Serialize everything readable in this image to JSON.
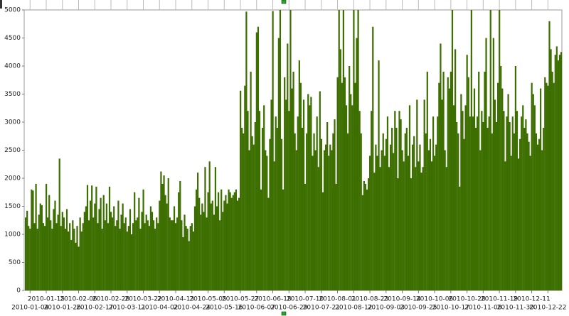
{
  "chart_data": {
    "type": "bar",
    "color": "#3c6e00",
    "ylim": [
      0,
      5000
    ],
    "yticks": [
      0,
      500,
      1000,
      1500,
      2000,
      2500,
      3000,
      3500,
      4000,
      4500,
      5000
    ],
    "categories": [
      null,
      null,
      null,
      "2010-01-04",
      null,
      null,
      null,
      null,
      null,
      null,
      null,
      null,
      null,
      null,
      "2010-01-15",
      null,
      null,
      null,
      null,
      null,
      null,
      null,
      null,
      null,
      null,
      "2010-01-26",
      null,
      null,
      null,
      null,
      null,
      null,
      null,
      null,
      null,
      null,
      "2010-02-06",
      null,
      null,
      null,
      null,
      null,
      null,
      null,
      null,
      null,
      null,
      "2010-02-17",
      null,
      null,
      null,
      null,
      null,
      null,
      null,
      null,
      null,
      null,
      "2010-02-28",
      null,
      null,
      null,
      null,
      null,
      null,
      null,
      null,
      null,
      null,
      "2010-03-11",
      null,
      null,
      null,
      null,
      null,
      null,
      null,
      null,
      null,
      null,
      "2010-03-22",
      null,
      null,
      null,
      null,
      null,
      null,
      null,
      null,
      null,
      null,
      "2010-04-02",
      null,
      null,
      null,
      null,
      null,
      null,
      null,
      null,
      null,
      null,
      "2010-04-13",
      null,
      null,
      null,
      null,
      null,
      null,
      null,
      null,
      null,
      null,
      "2010-04-24",
      null,
      null,
      null,
      null,
      null,
      null,
      null,
      null,
      null,
      null,
      "2010-05-05",
      null,
      null,
      null,
      null,
      null,
      null,
      null,
      null,
      null,
      null,
      "2010-05-16",
      null,
      null,
      null,
      null,
      null,
      null,
      null,
      null,
      null,
      null,
      "2010-05-27",
      null,
      null,
      null,
      null,
      null,
      null,
      null,
      null,
      null,
      null,
      "2010-06-07",
      null,
      null,
      null,
      null,
      null,
      null,
      null,
      null,
      null,
      null,
      "2010-06-18",
      null,
      null,
      null,
      null,
      null,
      null,
      null,
      null,
      null,
      null,
      "2010-06-29",
      null,
      null,
      null,
      null,
      null,
      null,
      null,
      null,
      null,
      null,
      "2010-07-10",
      null,
      null,
      null,
      null,
      null,
      null,
      null,
      null,
      null,
      null,
      "2010-07-21",
      null,
      null,
      null,
      null,
      null,
      null,
      null,
      null,
      null,
      null,
      "2010-08-01",
      null,
      null,
      null,
      null,
      null,
      null,
      null,
      null,
      null,
      null,
      "2010-08-12",
      null,
      null,
      null,
      null,
      null,
      null,
      null,
      null,
      null,
      null,
      "2010-08-23",
      null,
      null,
      null,
      null,
      null,
      null,
      null,
      null,
      null,
      null,
      "2010-09-03",
      null,
      null,
      null,
      null,
      null,
      null,
      null,
      null,
      null,
      null,
      "2010-09-14",
      null,
      null,
      null,
      null,
      null,
      null,
      null,
      null,
      null,
      null,
      "2010-09-25",
      null,
      null,
      null,
      null,
      null,
      null,
      null,
      null,
      null,
      null,
      "2010-10-06",
      null,
      null,
      null,
      null,
      null,
      null,
      null,
      null,
      null,
      null,
      "2010-10-17",
      null,
      null,
      null,
      null,
      null,
      null,
      null,
      null,
      null,
      null,
      "2010-10-28",
      null,
      null,
      null,
      null,
      null,
      null,
      null,
      null,
      null,
      null,
      "2010-11-08",
      null,
      null,
      null,
      null,
      null,
      null,
      null,
      null,
      null,
      null,
      "2010-11-19",
      null,
      null,
      null,
      null,
      null,
      null,
      null,
      null,
      null,
      null,
      "2010-11-30",
      null,
      null,
      null,
      null,
      null,
      null,
      null,
      null,
      null,
      null,
      "2010-12-11",
      null,
      null,
      null,
      null,
      null,
      null,
      null,
      null,
      null,
      null,
      "2010-12-22",
      null,
      null,
      null,
      null,
      null,
      null,
      null,
      null,
      null
    ],
    "values": [
      1300,
      1420,
      1150,
      1100,
      1800,
      1780,
      1200,
      1900,
      1100,
      1350,
      1550,
      1520,
      1200,
      1150,
      1900,
      1300,
      1700,
      1250,
      1100,
      1450,
      1600,
      1200,
      1350,
      2350,
      1150,
      1400,
      1300,
      1100,
      1450,
      1050,
      1200,
      900,
      1250,
      1100,
      850,
      1150,
      780,
      1300,
      1050,
      1200,
      1400,
      1500,
      1880,
      1250,
      1600,
      1870,
      1300,
      1550,
      1850,
      1200,
      1450,
      1650,
      1100,
      1700,
      1250,
      1550,
      1200,
      1850,
      1400,
      1300,
      1500,
      1150,
      1250,
      1600,
      1100,
      1350,
      1550,
      1200,
      1300,
      1050,
      1150,
      1450,
      1000,
      1200,
      1750,
      1250,
      1300,
      1650,
      1100,
      1400,
      1800,
      1200,
      1350,
      1250,
      1150,
      1500,
      1400,
      1250,
      1100,
      1300,
      1200,
      1600,
      2120,
      1900,
      2050,
      1700,
      1550,
      2000,
      1300,
      1250,
      1250,
      1500,
      1200,
      1300,
      1750,
      1950,
      1250,
      950,
      1350,
      1150,
      1100,
      880,
      1150,
      1200,
      1050,
      1500,
      1800,
      2100,
      1650,
      1350,
      1550,
      1400,
      2200,
      1300,
      1750,
      2300,
      1550,
      1600,
      1350,
      2200,
      1500,
      1750,
      1250,
      1800,
      1400,
      1600,
      1700,
      1550,
      1800,
      1750,
      1650,
      1700,
      1750,
      1800,
      1600,
      1650,
      3560,
      2900,
      2800,
      3650,
      4970,
      3200,
      2500,
      3900,
      2750,
      2600,
      3000,
      4600,
      4700,
      3200,
      1800,
      2900,
      3300,
      2500,
      2400,
      1650,
      2700,
      3400,
      4980,
      2300,
      3100,
      2900,
      4500,
      5000,
      2700,
      1800,
      3800,
      3400,
      4400,
      3200,
      5000,
      3600,
      3900,
      2800,
      2500,
      3100,
      4100,
      3700,
      2900,
      3400,
      1900,
      2800,
      3500,
      3300,
      3450,
      2400,
      2800,
      2500,
      3100,
      2200,
      3550,
      2700,
      1750,
      2500,
      2600,
      3000,
      2400,
      2600,
      2500,
      2800,
      3050,
      1900,
      3800,
      5000,
      4300,
      3700,
      5000,
      3800,
      3300,
      2800,
      4000,
      3500,
      3300,
      5000,
      3700,
      4500,
      5000,
      3200,
      2800,
      1700,
      1950,
      1900,
      1800,
      2000,
      2400,
      3200,
      4700,
      2100,
      2600,
      2400,
      4100,
      2200,
      2500,
      2800,
      2400,
      2700,
      3100,
      2200,
      2600,
      2900,
      2450,
      3200,
      2900,
      2000,
      3200,
      3050,
      2500,
      2300,
      2800,
      2900,
      2400,
      3300,
      2000,
      2600,
      2750,
      2200,
      3400,
      2300,
      2600,
      2100,
      2200,
      3400,
      2800,
      3900,
      2500,
      2700,
      2300,
      3100,
      2400,
      2600,
      3100,
      3700,
      4400,
      3400,
      3900,
      2500,
      2200,
      3800,
      3600,
      3900,
      5000,
      3300,
      4300,
      3000,
      2800,
      1850,
      3500,
      3200,
      2700,
      3300,
      4200,
      3800,
      3100,
      5000,
      3100,
      3600,
      2900,
      3100,
      3900,
      2500,
      3200,
      3000,
      3900,
      4500,
      2900,
      3100,
      5000,
      2800,
      4500,
      3400,
      3000,
      3700,
      5000,
      4000,
      3600,
      3200,
      2300,
      3100,
      3500,
      3000,
      2400,
      3100,
      2800,
      4000,
      3200,
      2350,
      2700,
      3100,
      3300,
      2900,
      3050,
      2800,
      2650,
      2400,
      3700,
      3500,
      3300,
      2800,
      2600,
      2700,
      3600,
      2500,
      2900,
      3800,
      3700,
      3650,
      4800,
      4300,
      3900,
      3700,
      4200,
      4350,
      4100,
      4200,
      4250
    ]
  }
}
